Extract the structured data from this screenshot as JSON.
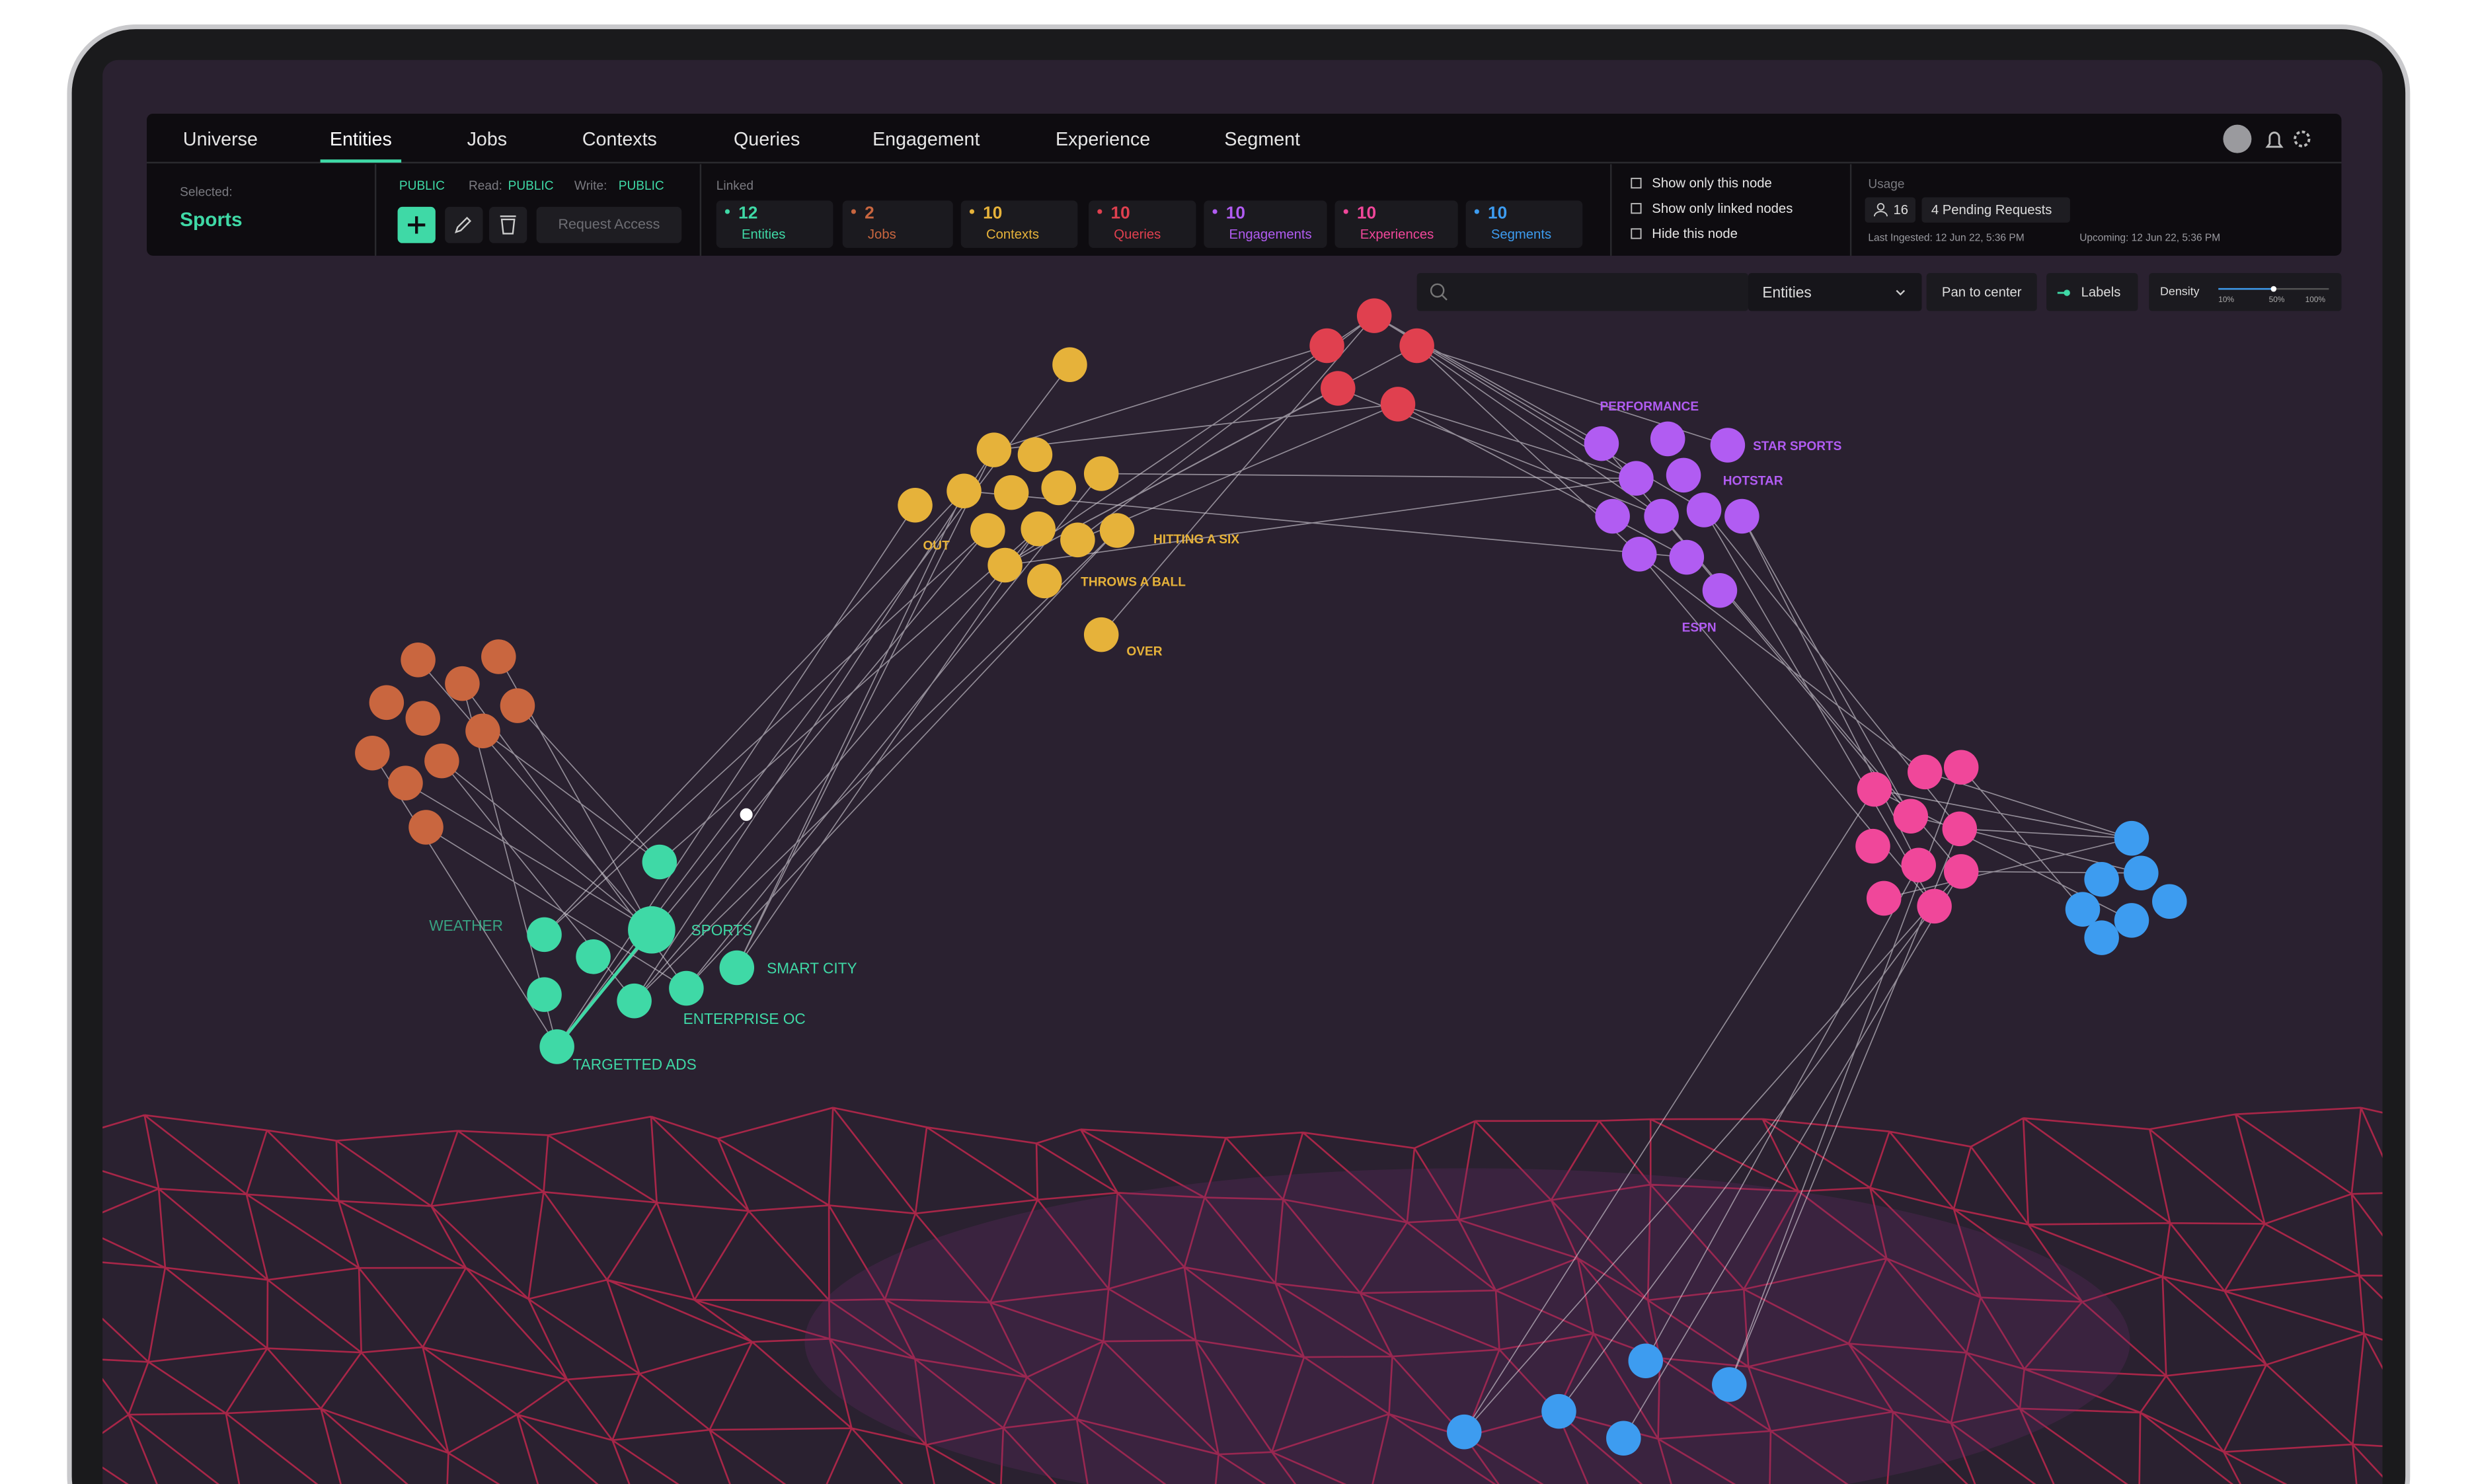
{
  "nav": {
    "tabs": [
      "Universe",
      "Entities",
      "Jobs",
      "Contexts",
      "Queries",
      "Engagement",
      "Experience",
      "Segment"
    ],
    "active": 1
  },
  "selected": {
    "label": "Selected:",
    "name": "Sports"
  },
  "access": {
    "public": "PUBLIC",
    "read_label": "Read:",
    "read": "PUBLIC",
    "write_label": "Write:",
    "write": "PUBLIC",
    "request": "Request Access"
  },
  "linked": {
    "label": "Linked",
    "items": [
      {
        "count": 12,
        "name": "Entities",
        "color": "#3fd9a6"
      },
      {
        "count": 2,
        "name": "Jobs",
        "color": "#c9663f"
      },
      {
        "count": 10,
        "name": "Contexts",
        "color": "#e6b23a"
      },
      {
        "count": 10,
        "name": "Queries",
        "color": "#e0404f"
      },
      {
        "count": 10,
        "name": "Engagements",
        "color": "#b15cf2"
      },
      {
        "count": 10,
        "name": "Experiences",
        "color": "#f0479a"
      },
      {
        "count": 10,
        "name": "Segments",
        "color": "#3d9cf0"
      }
    ]
  },
  "options": [
    "Show only this node",
    "Show only linked nodes",
    "Hide this node"
  ],
  "usage": {
    "label": "Usage",
    "users": 16,
    "pending": "4 Pending Requests",
    "last_ingested": "Last Ingested: 12 Jun 22, 5:36 PM",
    "upcoming": "Upcoming: 12 Jun 22, 5:36 PM"
  },
  "toolbar": {
    "filter": "Entities",
    "pan": "Pan to center",
    "labels": "Labels",
    "density": "Density",
    "density_ticks": [
      "10%",
      "50%",
      "100%"
    ]
  },
  "graph": {
    "entity_labels": [
      "WEATHER",
      "SPORTS",
      "SMART CITY",
      "ENTERPRISE OC",
      "TARGETTED ADS"
    ],
    "context_labels": [
      "OUT",
      "HITTING A SIX",
      "THROWS A BALL",
      "OVER"
    ],
    "engagement_labels": [
      "PERFORMANCE",
      "STAR SPORTS",
      "HOTSTAR",
      "ESPN"
    ]
  }
}
